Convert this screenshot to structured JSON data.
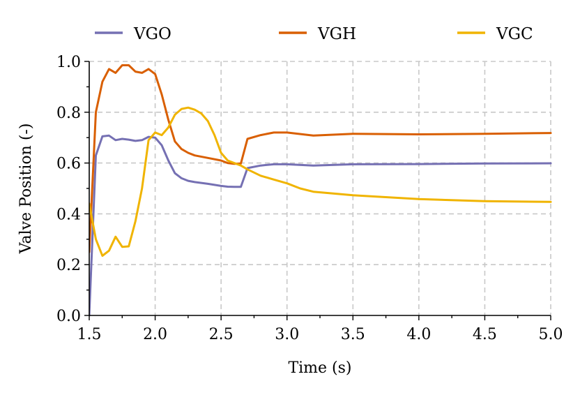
{
  "chart_data": {
    "type": "line",
    "title": "",
    "xlabel": "Time (s)",
    "ylabel": "Valve Position (-)",
    "xlim": [
      1.5,
      5.0
    ],
    "ylim": [
      0.0,
      1.0
    ],
    "grid": true,
    "legend_position": "top",
    "x_ticks": [
      "1.5",
      "2.0",
      "2.5",
      "3.0",
      "3.5",
      "4.0",
      "4.5",
      "5.0"
    ],
    "x_tick_values": [
      1.5,
      2.0,
      2.5,
      3.0,
      3.5,
      4.0,
      4.5,
      5.0
    ],
    "y_ticks": [
      "0.0",
      "0.2",
      "0.4",
      "0.6",
      "0.8",
      "1.0"
    ],
    "y_tick_values": [
      0.0,
      0.2,
      0.4,
      0.6,
      0.8,
      1.0
    ],
    "series": [
      {
        "name": "VGO",
        "color": "#7570b3",
        "x": [
          1.5,
          1.55,
          1.6,
          1.65,
          1.7,
          1.75,
          1.8,
          1.85,
          1.9,
          1.95,
          2.0,
          2.05,
          2.1,
          2.15,
          2.2,
          2.25,
          2.3,
          2.4,
          2.5,
          2.55,
          2.6,
          2.65,
          2.7,
          2.8,
          2.9,
          3.0,
          3.2,
          3.5,
          4.0,
          4.5,
          5.0
        ],
        "y": [
          0.0,
          0.63,
          0.705,
          0.708,
          0.69,
          0.695,
          0.692,
          0.687,
          0.69,
          0.703,
          0.7,
          0.67,
          0.61,
          0.56,
          0.54,
          0.53,
          0.525,
          0.518,
          0.51,
          0.507,
          0.506,
          0.506,
          0.58,
          0.59,
          0.595,
          0.595,
          0.59,
          0.595,
          0.596,
          0.598,
          0.599
        ]
      },
      {
        "name": "VGH",
        "color": "#d95f02",
        "x": [
          1.5,
          1.55,
          1.6,
          1.65,
          1.7,
          1.75,
          1.8,
          1.85,
          1.9,
          1.95,
          2.0,
          2.05,
          2.1,
          2.15,
          2.2,
          2.25,
          2.3,
          2.4,
          2.5,
          2.55,
          2.6,
          2.65,
          2.7,
          2.8,
          2.9,
          3.0,
          3.2,
          3.5,
          4.0,
          4.5,
          5.0
        ],
        "y": [
          0.25,
          0.8,
          0.92,
          0.97,
          0.955,
          0.985,
          0.985,
          0.96,
          0.955,
          0.97,
          0.95,
          0.87,
          0.77,
          0.685,
          0.655,
          0.64,
          0.63,
          0.62,
          0.61,
          0.6,
          0.597,
          0.598,
          0.695,
          0.71,
          0.72,
          0.72,
          0.708,
          0.715,
          0.713,
          0.715,
          0.718
        ]
      },
      {
        "name": "VGC",
        "color": "#f0b400",
        "x": [
          1.5,
          1.55,
          1.6,
          1.65,
          1.7,
          1.75,
          1.8,
          1.85,
          1.9,
          1.95,
          2.0,
          2.05,
          2.1,
          2.15,
          2.2,
          2.25,
          2.3,
          2.35,
          2.4,
          2.45,
          2.5,
          2.55,
          2.6,
          2.65,
          2.7,
          2.8,
          2.9,
          3.0,
          3.1,
          3.2,
          3.5,
          4.0,
          4.5,
          5.0
        ],
        "y": [
          0.44,
          0.3,
          0.235,
          0.255,
          0.31,
          0.27,
          0.272,
          0.37,
          0.5,
          0.69,
          0.72,
          0.71,
          0.74,
          0.79,
          0.813,
          0.818,
          0.81,
          0.795,
          0.765,
          0.71,
          0.64,
          0.61,
          0.6,
          0.59,
          0.575,
          0.55,
          0.535,
          0.52,
          0.5,
          0.487,
          0.473,
          0.458,
          0.45,
          0.447
        ]
      }
    ]
  }
}
